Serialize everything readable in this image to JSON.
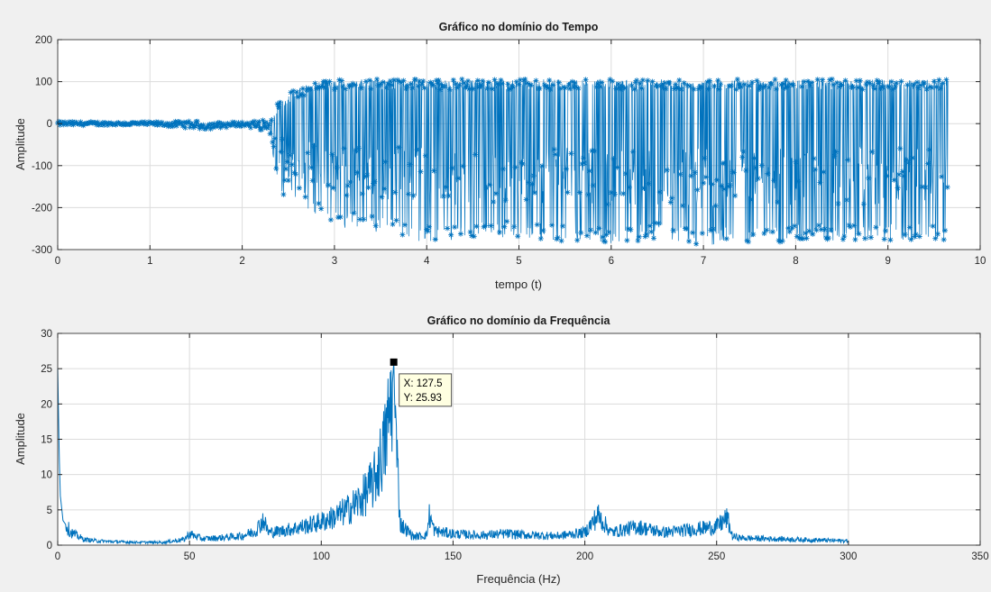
{
  "chart_data": [
    {
      "type": "scatter",
      "title": "Gráfico no domínio do Tempo",
      "xlabel": "tempo (t)",
      "ylabel": "Amplitude",
      "xlim": [
        0,
        10
      ],
      "ylim": [
        -300,
        200
      ],
      "xticks": [
        0,
        1,
        2,
        3,
        4,
        5,
        6,
        7,
        8,
        9,
        10
      ],
      "yticks": [
        -300,
        -200,
        -100,
        0,
        100,
        200
      ],
      "grid": true,
      "marker": "*",
      "color": "#0072bd",
      "x": [
        0,
        0.5,
        1.0,
        1.5,
        1.6,
        2.0,
        2.3,
        2.4,
        2.5,
        2.6,
        2.7,
        2.8,
        2.9,
        3.0,
        3.5,
        4.0,
        4.5,
        5.0,
        5.5,
        6.0,
        6.5,
        7.0,
        7.5,
        8.0,
        8.5,
        9.0,
        9.5,
        9.65
      ],
      "y_max": [
        5,
        4,
        4,
        6,
        3,
        4,
        10,
        60,
        75,
        85,
        92,
        98,
        103,
        105,
        106,
        106,
        106,
        106,
        106,
        106,
        106,
        106,
        106,
        106,
        106,
        106,
        106,
        106
      ],
      "y_min": [
        -5,
        -4,
        -4,
        -12,
        -14,
        -6,
        -20,
        -190,
        -160,
        -185,
        -205,
        -215,
        -230,
        -245,
        -260,
        -285,
        -275,
        -270,
        -280,
        -285,
        -275,
        -290,
        -285,
        -280,
        -280,
        -280,
        -275,
        -285
      ]
    },
    {
      "type": "line",
      "title": "Gráfico no domínio da Frequência",
      "xlabel": "Frequência (Hz)",
      "ylabel": "Amplitude",
      "xlim": [
        0,
        350
      ],
      "ylim": [
        0,
        30
      ],
      "xticks": [
        0,
        50,
        100,
        150,
        200,
        250,
        300,
        350
      ],
      "yticks": [
        0,
        5,
        10,
        15,
        20,
        25,
        30
      ],
      "grid": true,
      "color": "#0072bd",
      "x": [
        0,
        0.5,
        1,
        2,
        5,
        10,
        15,
        20,
        30,
        40,
        48,
        50,
        55,
        60,
        70,
        75,
        78,
        80,
        85,
        90,
        95,
        100,
        105,
        110,
        115,
        120,
        124,
        126,
        127,
        127.5,
        128,
        130,
        135,
        140,
        141,
        143,
        150,
        160,
        170,
        180,
        190,
        200,
        205,
        210,
        220,
        230,
        240,
        250,
        254,
        256,
        260,
        270,
        280,
        290,
        300
      ],
      "y": [
        25,
        14,
        7,
        3.5,
        1.8,
        0.8,
        0.6,
        0.5,
        0.4,
        0.4,
        0.8,
        1.6,
        0.9,
        1.0,
        1.3,
        2.0,
        3.6,
        1.8,
        2.0,
        2.4,
        2.8,
        3.3,
        4.0,
        5.0,
        6.4,
        9.0,
        14.0,
        19.0,
        23.0,
        25.93,
        18.0,
        3.0,
        1.2,
        1.4,
        4.2,
        2.0,
        1.6,
        1.4,
        1.6,
        1.4,
        1.3,
        1.8,
        4.2,
        1.8,
        2.6,
        1.8,
        2.2,
        2.6,
        3.8,
        1.2,
        1.0,
        0.9,
        0.8,
        0.7,
        0.6
      ],
      "datatip": {
        "x": 127.5,
        "y": 25.93,
        "label_x": "X: 127.5",
        "label_y": "Y: 25.93"
      }
    }
  ]
}
